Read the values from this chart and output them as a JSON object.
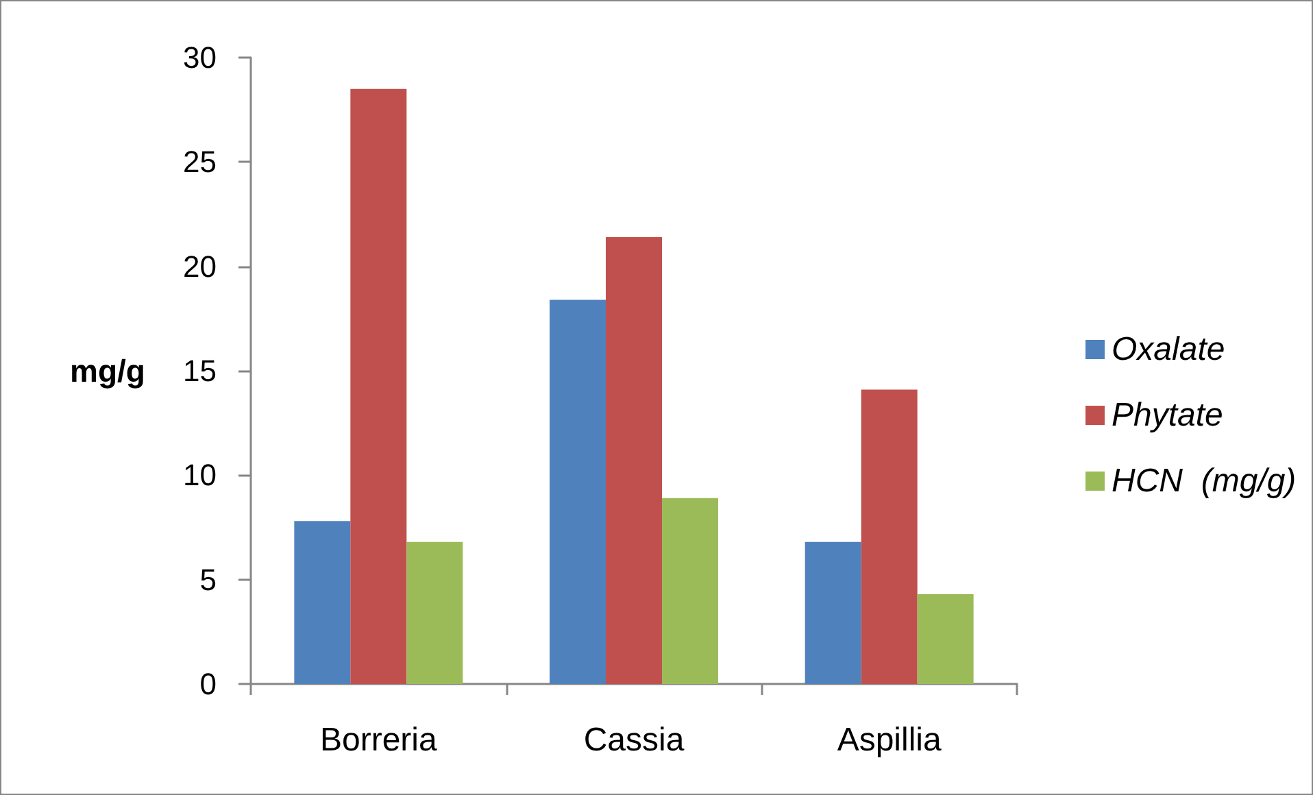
{
  "chart_data": {
    "type": "bar",
    "categories": [
      "Borreria",
      "Cassia",
      "Aspillia"
    ],
    "series": [
      {
        "name": "Oxalate",
        "color": "#4f81bd",
        "values": [
          7.8,
          18.4,
          6.8
        ]
      },
      {
        "name": "Phytate",
        "color": "#c0504d",
        "values": [
          28.5,
          21.4,
          14.1
        ]
      },
      {
        "name": "HCN  (mg/g)",
        "color": "#9bbb59",
        "values": [
          6.8,
          8.9,
          4.3
        ]
      }
    ],
    "ylabel": "mg/g",
    "ylim": [
      0,
      30
    ],
    "yticks": [
      0,
      5,
      10,
      15,
      20,
      25,
      30
    ],
    "legend": "right"
  }
}
